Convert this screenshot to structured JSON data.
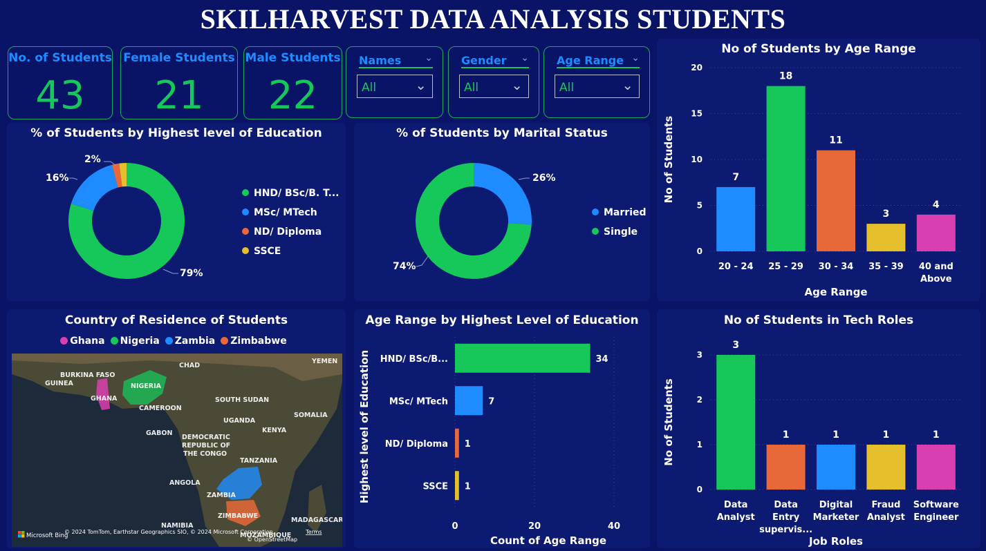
{
  "title": "SKILHARVEST DATA ANALYSIS STUDENTS",
  "cards": [
    {
      "label": "No. of Students",
      "value": "43"
    },
    {
      "label": "Female Students",
      "value": "21"
    },
    {
      "label": "Male Students",
      "value": "22"
    }
  ],
  "slicers": [
    {
      "label": "Names",
      "value": "All"
    },
    {
      "label": "Gender",
      "value": "All"
    },
    {
      "label": "Age Range",
      "value": "All"
    }
  ],
  "chart_data": [
    {
      "type": "pie",
      "title": "% of Students by Highest level of Education",
      "categories": [
        "HND/ BSc/B. T...",
        "MSc/ MTech",
        "ND/ Diploma",
        "SSCE"
      ],
      "values": [
        79,
        16,
        2,
        2
      ],
      "data_labels": [
        "79%",
        "16%",
        "2%",
        ""
      ],
      "colors": [
        "#16c75a",
        "#1e8cff",
        "#e8683a",
        "#e6c02c"
      ]
    },
    {
      "type": "pie",
      "title": "% of Students by Marital Status",
      "categories": [
        "Married",
        "Single"
      ],
      "values": [
        26,
        74
      ],
      "data_labels": [
        "26%",
        "74%"
      ],
      "colors": [
        "#1e8cff",
        "#16c75a"
      ]
    },
    {
      "type": "bar",
      "title": "No of Students by Age Range",
      "xlabel": "Age Range",
      "ylabel": "No of Students",
      "categories": [
        "20 - 24",
        "25 - 29",
        "30 - 34",
        "35 - 39",
        "40 and Above"
      ],
      "values": [
        7,
        18,
        11,
        3,
        4
      ],
      "colors": [
        "#1e8cff",
        "#16c75a",
        "#e8683a",
        "#e6c02c",
        "#d93fb0"
      ],
      "ylim": [
        0,
        20
      ],
      "yticks": [
        0,
        5,
        10,
        15,
        20
      ]
    },
    {
      "type": "bar",
      "orientation": "horizontal",
      "title": "Age Range by Highest Level of Education",
      "xlabel": "Count of Age Range",
      "ylabel": "Highest level of Education",
      "categories": [
        "HND/ BSc/B...",
        "MSc/ MTech",
        "ND/ Diploma",
        "SSCE"
      ],
      "values": [
        34,
        7,
        1,
        1
      ],
      "colors": [
        "#16c75a",
        "#1e8cff",
        "#e8683a",
        "#e6c02c"
      ],
      "xlim": [
        0,
        40
      ],
      "xticks": [
        0,
        20,
        40
      ]
    },
    {
      "type": "bar",
      "title": "No of Students in Tech Roles",
      "xlabel": "Job Roles",
      "ylabel": "No of Students",
      "categories": [
        "Data Analyst",
        "Data Entry supervis...",
        "Digital Marketer",
        "Fraud Analyst",
        "Software Engineer"
      ],
      "values": [
        3,
        1,
        1,
        1,
        1
      ],
      "colors": [
        "#16c75a",
        "#e8683a",
        "#1e8cff",
        "#e6c02c",
        "#d93fb0"
      ],
      "ylim": [
        0,
        3
      ],
      "yticks": [
        0,
        1,
        2,
        3
      ]
    }
  ],
  "map": {
    "title": "Country of Residence of Students",
    "legend": [
      {
        "name": "Ghana",
        "color": "#d93fb0"
      },
      {
        "name": "Nigeria",
        "color": "#16c75a"
      },
      {
        "name": "Zambia",
        "color": "#1e8cff"
      },
      {
        "name": "Zimbabwe",
        "color": "#e8683a"
      }
    ],
    "labels": [
      "YEMEN",
      "CHAD",
      "BURKINA FASO",
      "GUINEA",
      "NIGERIA",
      "GHANA",
      "SOUTH SUDAN",
      "CAMEROON",
      "SOMALIA",
      "UGANDA",
      "GABON",
      "KENYA",
      "DEMOCRATIC",
      "REPUBLIC OF",
      "THE CONGO",
      "TANZANIA",
      "ANGOLA",
      "ZAMBIA",
      "ZIMBABWE",
      "NAMIBIA",
      "MADAGASCAR",
      "MOZAMBIQUE"
    ],
    "brand": "Microsoft Bing",
    "attribution": "© 2024 TomTom, Earthstar Geographics SIO, © 2024 Microsoft Corporation,",
    "terms": "Terms",
    "osm": "© OpenStreetMap"
  }
}
